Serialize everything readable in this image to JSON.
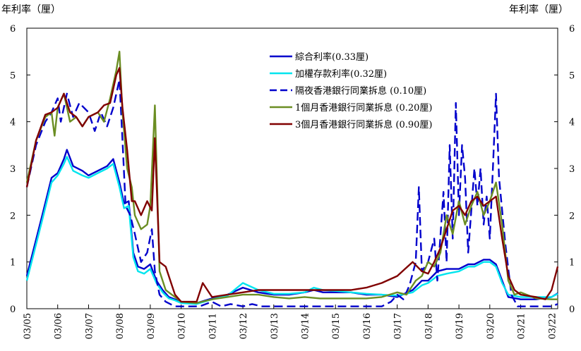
{
  "chart_data": {
    "type": "line",
    "ylabel_left": "年利率（厘）",
    "ylabel_right": "年利率（厘）",
    "ylim": [
      0,
      6
    ],
    "yticks": [
      0,
      1,
      2,
      3,
      4,
      5,
      6
    ],
    "x_tick_labels": [
      "03/05",
      "03/06",
      "03/07",
      "03/08",
      "03/09",
      "03/10",
      "03/11",
      "03/12",
      "03/13",
      "03/14",
      "03/15",
      "03/16",
      "03/17",
      "03/18",
      "03/19",
      "03/20",
      "03/21",
      "03/22"
    ],
    "x_range": [
      0,
      17.2
    ],
    "grid": false,
    "legend_position": "top-center",
    "series": [
      {
        "name": "綜合利率(0.33厘)",
        "color": "#0000CC",
        "dash": "solid",
        "points": [
          [
            0,
            0.7
          ],
          [
            0.5,
            2.0
          ],
          [
            0.8,
            2.8
          ],
          [
            1.0,
            2.9
          ],
          [
            1.2,
            3.2
          ],
          [
            1.3,
            3.4
          ],
          [
            1.5,
            3.05
          ],
          [
            1.8,
            2.95
          ],
          [
            2.0,
            2.85
          ],
          [
            2.3,
            2.95
          ],
          [
            2.6,
            3.05
          ],
          [
            2.8,
            3.2
          ],
          [
            3.0,
            2.7
          ],
          [
            3.15,
            2.25
          ],
          [
            3.3,
            2.3
          ],
          [
            3.45,
            1.2
          ],
          [
            3.6,
            0.9
          ],
          [
            3.8,
            0.85
          ],
          [
            4.0,
            0.95
          ],
          [
            4.2,
            0.6
          ],
          [
            4.4,
            0.4
          ],
          [
            4.6,
            0.25
          ],
          [
            4.8,
            0.2
          ],
          [
            5.0,
            0.15
          ],
          [
            5.5,
            0.12
          ],
          [
            6.0,
            0.22
          ],
          [
            6.5,
            0.3
          ],
          [
            7.0,
            0.45
          ],
          [
            7.5,
            0.35
          ],
          [
            8.0,
            0.3
          ],
          [
            8.5,
            0.3
          ],
          [
            9.0,
            0.35
          ],
          [
            9.3,
            0.4
          ],
          [
            9.6,
            0.35
          ],
          [
            10.0,
            0.35
          ],
          [
            10.5,
            0.35
          ],
          [
            11.0,
            0.3
          ],
          [
            11.5,
            0.3
          ],
          [
            12.0,
            0.25
          ],
          [
            12.5,
            0.4
          ],
          [
            12.8,
            0.6
          ],
          [
            13.0,
            0.6
          ],
          [
            13.3,
            0.8
          ],
          [
            13.6,
            0.85
          ],
          [
            14.0,
            0.85
          ],
          [
            14.3,
            0.95
          ],
          [
            14.5,
            0.95
          ],
          [
            14.8,
            1.05
          ],
          [
            15.0,
            1.05
          ],
          [
            15.2,
            0.95
          ],
          [
            15.4,
            0.6
          ],
          [
            15.6,
            0.25
          ],
          [
            16.0,
            0.2
          ],
          [
            16.5,
            0.2
          ],
          [
            17.0,
            0.25
          ],
          [
            17.2,
            0.33
          ]
        ]
      },
      {
        "name": "加權存款利率(0.32厘)",
        "color": "#00E5EE",
        "dash": "solid",
        "points": [
          [
            0,
            0.6
          ],
          [
            0.5,
            1.9
          ],
          [
            0.8,
            2.7
          ],
          [
            1.0,
            2.85
          ],
          [
            1.2,
            3.1
          ],
          [
            1.3,
            3.25
          ],
          [
            1.5,
            2.95
          ],
          [
            1.8,
            2.85
          ],
          [
            2.0,
            2.8
          ],
          [
            2.3,
            2.9
          ],
          [
            2.6,
            3.0
          ],
          [
            2.8,
            3.1
          ],
          [
            3.0,
            2.6
          ],
          [
            3.15,
            2.15
          ],
          [
            3.3,
            2.2
          ],
          [
            3.45,
            1.1
          ],
          [
            3.6,
            0.8
          ],
          [
            3.8,
            0.75
          ],
          [
            4.0,
            0.85
          ],
          [
            4.2,
            0.55
          ],
          [
            4.4,
            0.35
          ],
          [
            4.6,
            0.22
          ],
          [
            4.8,
            0.18
          ],
          [
            5.0,
            0.12
          ],
          [
            5.5,
            0.1
          ],
          [
            6.0,
            0.2
          ],
          [
            6.5,
            0.28
          ],
          [
            7.0,
            0.55
          ],
          [
            7.5,
            0.4
          ],
          [
            8.0,
            0.32
          ],
          [
            8.5,
            0.32
          ],
          [
            9.0,
            0.35
          ],
          [
            9.3,
            0.45
          ],
          [
            9.6,
            0.4
          ],
          [
            10.0,
            0.38
          ],
          [
            10.5,
            0.35
          ],
          [
            11.0,
            0.32
          ],
          [
            11.5,
            0.3
          ],
          [
            12.0,
            0.28
          ],
          [
            12.5,
            0.35
          ],
          [
            12.8,
            0.5
          ],
          [
            13.0,
            0.55
          ],
          [
            13.3,
            0.7
          ],
          [
            13.6,
            0.75
          ],
          [
            14.0,
            0.8
          ],
          [
            14.3,
            0.9
          ],
          [
            14.5,
            0.9
          ],
          [
            14.8,
            1.0
          ],
          [
            15.0,
            1.0
          ],
          [
            15.2,
            0.9
          ],
          [
            15.4,
            0.55
          ],
          [
            15.6,
            0.3
          ],
          [
            16.0,
            0.25
          ],
          [
            16.5,
            0.25
          ],
          [
            17.0,
            0.25
          ],
          [
            17.2,
            0.32
          ]
        ]
      },
      {
        "name": "隔夜香港銀行同業拆息 (0.10厘)",
        "color": "#0000CC",
        "dash": "long",
        "points": [
          [
            0,
            2.6
          ],
          [
            0.3,
            3.5
          ],
          [
            0.6,
            4.0
          ],
          [
            0.8,
            4.2
          ],
          [
            1.0,
            4.5
          ],
          [
            1.1,
            4.0
          ],
          [
            1.3,
            4.6
          ],
          [
            1.5,
            4.1
          ],
          [
            1.7,
            4.4
          ],
          [
            2.0,
            4.2
          ],
          [
            2.2,
            3.8
          ],
          [
            2.4,
            4.2
          ],
          [
            2.6,
            3.9
          ],
          [
            2.8,
            4.3
          ],
          [
            3.0,
            4.9
          ],
          [
            3.1,
            3.6
          ],
          [
            3.2,
            2.2
          ],
          [
            3.35,
            2.0
          ],
          [
            3.5,
            1.6
          ],
          [
            3.7,
            1.0
          ],
          [
            3.9,
            1.2
          ],
          [
            4.05,
            1.7
          ],
          [
            4.15,
            0.8
          ],
          [
            4.3,
            0.3
          ],
          [
            4.5,
            0.15
          ],
          [
            4.8,
            0.05
          ],
          [
            5.2,
            0.05
          ],
          [
            5.6,
            0.05
          ],
          [
            6.0,
            0.15
          ],
          [
            6.3,
            0.05
          ],
          [
            6.6,
            0.1
          ],
          [
            7.0,
            0.05
          ],
          [
            7.3,
            0.1
          ],
          [
            7.6,
            0.05
          ],
          [
            8.0,
            0.05
          ],
          [
            8.5,
            0.05
          ],
          [
            9.0,
            0.05
          ],
          [
            9.5,
            0.05
          ],
          [
            10.0,
            0.05
          ],
          [
            10.5,
            0.05
          ],
          [
            11.0,
            0.05
          ],
          [
            11.5,
            0.05
          ],
          [
            11.8,
            0.15
          ],
          [
            12.0,
            0.3
          ],
          [
            12.2,
            0.2
          ],
          [
            12.4,
            0.5
          ],
          [
            12.6,
            1.0
          ],
          [
            12.7,
            2.6
          ],
          [
            12.8,
            0.8
          ],
          [
            13.0,
            1.0
          ],
          [
            13.2,
            1.5
          ],
          [
            13.3,
            0.6
          ],
          [
            13.5,
            2.5
          ],
          [
            13.6,
            1.0
          ],
          [
            13.7,
            3.5
          ],
          [
            13.8,
            1.5
          ],
          [
            13.9,
            4.4
          ],
          [
            14.0,
            2.0
          ],
          [
            14.1,
            3.5
          ],
          [
            14.2,
            2.8
          ],
          [
            14.3,
            1.2
          ],
          [
            14.5,
            3.0
          ],
          [
            14.6,
            2.2
          ],
          [
            14.7,
            3.0
          ],
          [
            14.8,
            1.8
          ],
          [
            14.9,
            2.4
          ],
          [
            15.0,
            1.5
          ],
          [
            15.1,
            3.0
          ],
          [
            15.2,
            4.6
          ],
          [
            15.3,
            2.8
          ],
          [
            15.5,
            1.4
          ],
          [
            15.7,
            0.3
          ],
          [
            15.9,
            0.05
          ],
          [
            16.2,
            0.05
          ],
          [
            16.5,
            0.05
          ],
          [
            17.0,
            0.05
          ],
          [
            17.2,
            0.1
          ]
        ]
      },
      {
        "name": "1個月香港銀行同業拆息 (0.20厘)",
        "color": "#6B8E23",
        "dash": "solid",
        "points": [
          [
            0,
            2.7
          ],
          [
            0.3,
            3.6
          ],
          [
            0.6,
            4.1
          ],
          [
            0.8,
            4.2
          ],
          [
            0.9,
            3.7
          ],
          [
            1.0,
            4.3
          ],
          [
            1.2,
            4.6
          ],
          [
            1.4,
            4.0
          ],
          [
            1.6,
            4.1
          ],
          [
            1.8,
            3.9
          ],
          [
            2.0,
            4.1
          ],
          [
            2.3,
            4.2
          ],
          [
            2.5,
            4.0
          ],
          [
            2.7,
            4.5
          ],
          [
            2.9,
            5.1
          ],
          [
            3.0,
            5.5
          ],
          [
            3.1,
            4.2
          ],
          [
            3.25,
            3.0
          ],
          [
            3.4,
            2.6
          ],
          [
            3.5,
            2.0
          ],
          [
            3.7,
            1.7
          ],
          [
            3.9,
            1.8
          ],
          [
            4.0,
            2.2
          ],
          [
            4.15,
            4.35
          ],
          [
            4.3,
            0.8
          ],
          [
            4.5,
            0.4
          ],
          [
            4.8,
            0.25
          ],
          [
            5.0,
            0.15
          ],
          [
            5.5,
            0.12
          ],
          [
            6.0,
            0.2
          ],
          [
            6.5,
            0.25
          ],
          [
            7.0,
            0.3
          ],
          [
            7.5,
            0.3
          ],
          [
            8.0,
            0.25
          ],
          [
            8.5,
            0.22
          ],
          [
            9.0,
            0.25
          ],
          [
            9.5,
            0.22
          ],
          [
            10.0,
            0.22
          ],
          [
            10.5,
            0.22
          ],
          [
            11.0,
            0.22
          ],
          [
            11.5,
            0.25
          ],
          [
            12.0,
            0.35
          ],
          [
            12.3,
            0.3
          ],
          [
            12.6,
            0.6
          ],
          [
            12.8,
            0.7
          ],
          [
            13.0,
            1.0
          ],
          [
            13.2,
            0.9
          ],
          [
            13.4,
            1.2
          ],
          [
            13.6,
            2.0
          ],
          [
            13.8,
            1.6
          ],
          [
            14.0,
            2.3
          ],
          [
            14.2,
            1.8
          ],
          [
            14.4,
            2.2
          ],
          [
            14.6,
            2.5
          ],
          [
            14.8,
            2.0
          ],
          [
            15.0,
            2.3
          ],
          [
            15.2,
            2.7
          ],
          [
            15.4,
            1.8
          ],
          [
            15.6,
            0.6
          ],
          [
            15.8,
            0.3
          ],
          [
            16.0,
            0.35
          ],
          [
            16.5,
            0.22
          ],
          [
            17.0,
            0.2
          ],
          [
            17.2,
            0.2
          ]
        ]
      },
      {
        "name": "3個月香港銀行同業拆息 (0.90厘)",
        "color": "#800000",
        "dash": "solid",
        "points": [
          [
            0,
            2.6
          ],
          [
            0.3,
            3.6
          ],
          [
            0.6,
            4.15
          ],
          [
            0.8,
            4.2
          ],
          [
            1.0,
            4.3
          ],
          [
            1.2,
            4.6
          ],
          [
            1.4,
            4.2
          ],
          [
            1.6,
            4.1
          ],
          [
            1.8,
            3.9
          ],
          [
            2.0,
            4.1
          ],
          [
            2.3,
            4.2
          ],
          [
            2.5,
            4.35
          ],
          [
            2.7,
            4.4
          ],
          [
            2.9,
            5.0
          ],
          [
            3.0,
            5.15
          ],
          [
            3.1,
            4.3
          ],
          [
            3.25,
            3.4
          ],
          [
            3.4,
            2.3
          ],
          [
            3.5,
            2.3
          ],
          [
            3.7,
            2.0
          ],
          [
            3.9,
            2.3
          ],
          [
            4.05,
            2.1
          ],
          [
            4.15,
            3.65
          ],
          [
            4.3,
            1.0
          ],
          [
            4.5,
            0.9
          ],
          [
            4.8,
            0.3
          ],
          [
            5.0,
            0.15
          ],
          [
            5.5,
            0.15
          ],
          [
            5.7,
            0.55
          ],
          [
            6.0,
            0.25
          ],
          [
            6.5,
            0.3
          ],
          [
            7.0,
            0.35
          ],
          [
            7.5,
            0.4
          ],
          [
            8.0,
            0.4
          ],
          [
            8.5,
            0.4
          ],
          [
            9.0,
            0.4
          ],
          [
            9.5,
            0.4
          ],
          [
            10.0,
            0.4
          ],
          [
            10.5,
            0.4
          ],
          [
            11.0,
            0.45
          ],
          [
            11.5,
            0.55
          ],
          [
            12.0,
            0.7
          ],
          [
            12.5,
            1.0
          ],
          [
            12.8,
            0.8
          ],
          [
            13.0,
            0.75
          ],
          [
            13.2,
            1.0
          ],
          [
            13.4,
            1.3
          ],
          [
            13.6,
            1.7
          ],
          [
            13.8,
            2.1
          ],
          [
            14.0,
            2.2
          ],
          [
            14.2,
            2.0
          ],
          [
            14.4,
            2.3
          ],
          [
            14.6,
            2.4
          ],
          [
            14.8,
            2.2
          ],
          [
            15.0,
            2.3
          ],
          [
            15.2,
            2.4
          ],
          [
            15.4,
            1.5
          ],
          [
            15.6,
            0.7
          ],
          [
            15.8,
            0.4
          ],
          [
            16.0,
            0.3
          ],
          [
            16.5,
            0.25
          ],
          [
            16.8,
            0.2
          ],
          [
            17.0,
            0.4
          ],
          [
            17.2,
            0.9
          ]
        ]
      }
    ]
  }
}
